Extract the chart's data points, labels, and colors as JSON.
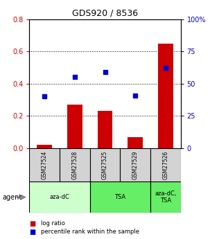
{
  "title": "GDS920 / 8536",
  "categories": [
    "GSM27524",
    "GSM27528",
    "GSM27525",
    "GSM27529",
    "GSM27526"
  ],
  "log_ratio": [
    0.02,
    0.27,
    0.23,
    0.07,
    0.65
  ],
  "percentile_rank": [
    40,
    55,
    59,
    41,
    62
  ],
  "bar_color": "#cc0000",
  "dot_color": "#0000cc",
  "ylim_left": [
    0,
    0.8
  ],
  "ylim_right": [
    0,
    100
  ],
  "yticks_left": [
    0,
    0.2,
    0.4,
    0.6,
    0.8
  ],
  "yticks_right": [
    0,
    25,
    50,
    75,
    100
  ],
  "group_labels": [
    "aza-dC",
    "TSA",
    "aza-dC,\nTSA"
  ],
  "group_starts": [
    0,
    2,
    4
  ],
  "group_ends": [
    2,
    4,
    5
  ],
  "group_colors": [
    "#ccffcc",
    "#66ee66",
    "#66ee66"
  ],
  "agent_label": "agent",
  "legend_red": "log ratio",
  "legend_blue": "percentile rank within the sample",
  "bar_width": 0.5,
  "background_color": "#ffffff",
  "tick_label_color_left": "#cc0000",
  "tick_label_color_right": "#0000cc",
  "gsm_box_color": "#d3d3d3"
}
